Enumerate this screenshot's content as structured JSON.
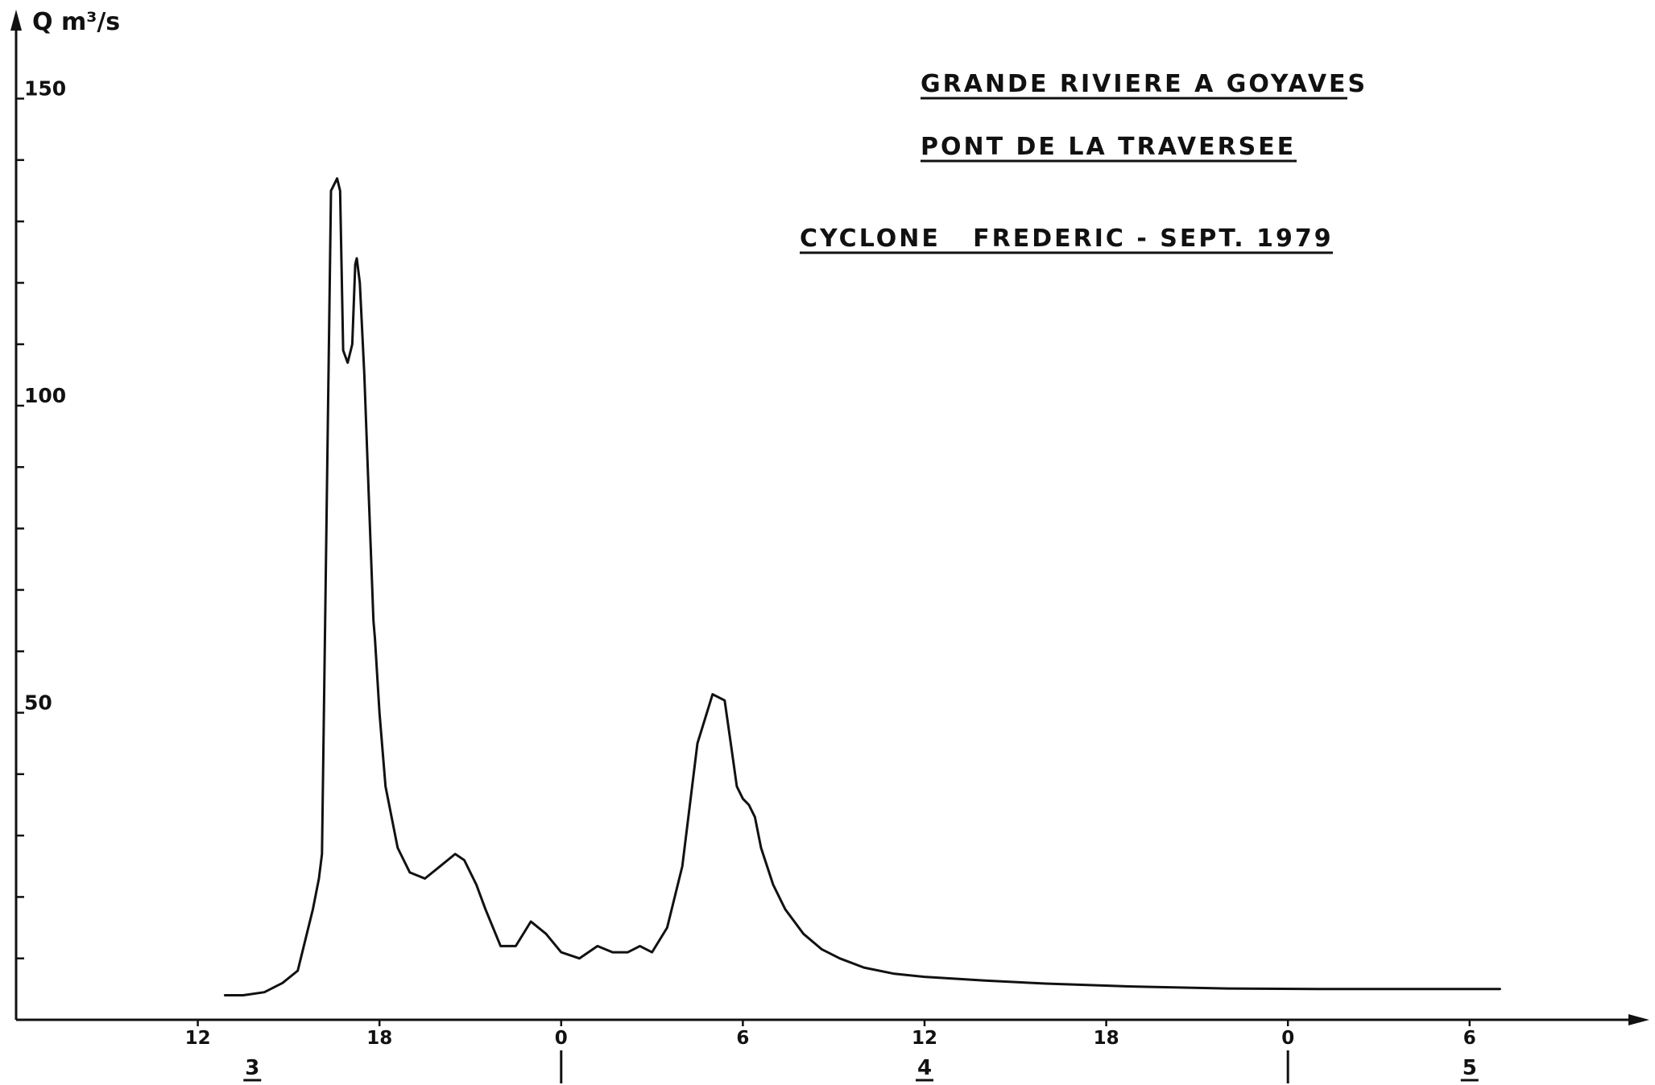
{
  "chart_data": {
    "type": "line",
    "title_lines": [
      "GRANDE RIVIERE A GOYAVES",
      "PONT DE LA TRAVERSEE",
      "CYCLONE   FREDERIC - SEPT. 1979"
    ],
    "ylabel": "Q m³/s",
    "xlabel": "",
    "ylim": [
      0,
      165
    ],
    "xlim": [
      6,
      60
    ],
    "y_ticks": [
      10,
      20,
      30,
      40,
      50,
      60,
      70,
      80,
      90,
      100,
      110,
      120,
      130,
      140,
      150
    ],
    "y_tick_labels": [
      {
        "value": 150,
        "label": "150"
      },
      {
        "value": 100,
        "label": "100"
      },
      {
        "value": 50,
        "label": "50"
      }
    ],
    "x_tick_labels": [
      {
        "value": 12,
        "label": "12"
      },
      {
        "value": 18,
        "label": "18"
      },
      {
        "value": 24,
        "label": "0"
      },
      {
        "value": 30,
        "label": "6"
      },
      {
        "value": 36,
        "label": "12"
      },
      {
        "value": 42,
        "label": "18"
      },
      {
        "value": 48,
        "label": "0"
      },
      {
        "value": 54,
        "label": "6"
      }
    ],
    "day_labels": [
      {
        "value": 13.8,
        "label": "3"
      },
      {
        "value": 36,
        "label": "4"
      },
      {
        "value": 54,
        "label": "5"
      }
    ],
    "day_separators": [
      24,
      48
    ],
    "series": [
      {
        "x": [
          12.9,
          13.5,
          14.2,
          14.8,
          15.3,
          15.8,
          16.0,
          16.1,
          16.4,
          16.6,
          16.7,
          16.8,
          16.95,
          17.1,
          17.2,
          17.25,
          17.35,
          17.5,
          17.65,
          17.8,
          17.85,
          18.0,
          18.2,
          18.6,
          19.0,
          19.5,
          20.0,
          20.5,
          20.8,
          21.2,
          21.5,
          22.0,
          22.5,
          23.0,
          23.5,
          24.0,
          24.6,
          25.2,
          25.7,
          26.2,
          26.6,
          27.0,
          27.5,
          28.0,
          28.5,
          29.0,
          29.4,
          29.6,
          29.8,
          30.0,
          30.2,
          30.4,
          30.6,
          31.0,
          31.4,
          31.7,
          32.0,
          32.6,
          33.2,
          34.0,
          35.0,
          36.0,
          38.0,
          40.0,
          43.0,
          46.0,
          49.0,
          52.0,
          55.0
        ],
        "y": [
          4,
          4,
          4.5,
          6,
          8,
          18,
          23,
          27,
          135,
          137,
          135,
          109,
          107,
          110,
          123,
          124,
          120,
          105,
          85,
          65,
          62,
          50,
          38,
          28,
          24,
          23,
          25,
          27,
          26,
          22,
          18,
          12,
          12,
          16,
          14,
          11,
          10,
          12,
          11,
          11,
          12,
          11,
          15,
          25,
          45,
          53,
          52,
          45,
          38,
          36,
          35,
          33,
          28,
          22,
          18,
          16,
          14,
          11.5,
          10,
          8.5,
          7.5,
          7,
          6.4,
          5.9,
          5.4,
          5.1,
          5,
          5,
          5
        ]
      }
    ],
    "grid": false
  }
}
